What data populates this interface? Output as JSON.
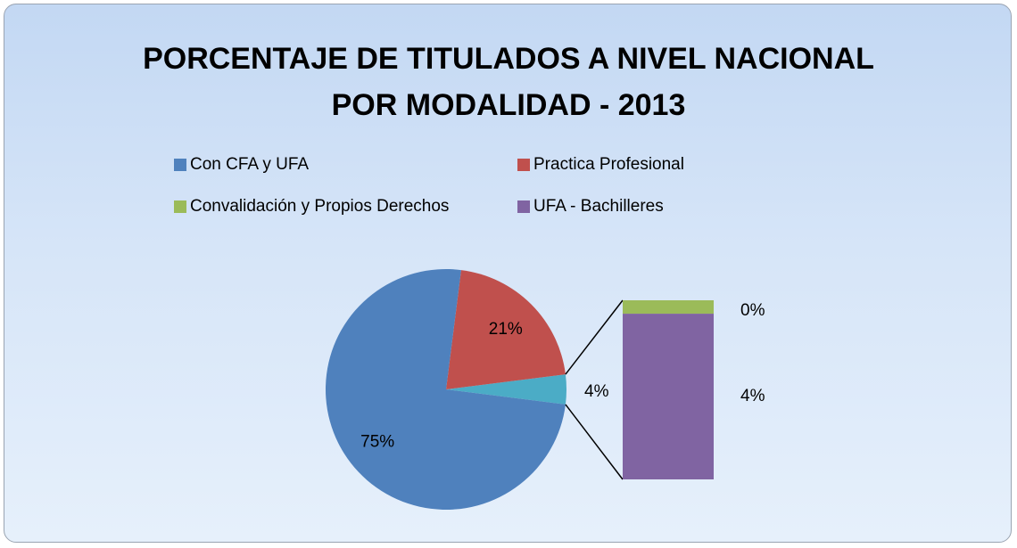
{
  "chart_data": {
    "type": "bar-of-pie",
    "title": "PORCENTAJE DE TITULADOS A NIVEL NACIONAL\nPOR MODALIDAD - 2013",
    "categories": [
      "Con CFA y UFA",
      "Practica Profesional",
      "Convalidación y Propios Derechos",
      "UFA - Bachilleres"
    ],
    "values": [
      75,
      21,
      0.3,
      3.7
    ],
    "value_labels": [
      "75%",
      "21%",
      "0%",
      "4%"
    ],
    "colors": [
      "#4f81bd",
      "#c0504d",
      "#9bbb59",
      "#8064a2"
    ],
    "secondary_count": 2,
    "other_value": 4,
    "other_value_label": "4%",
    "other_color": "#4bacc6"
  }
}
